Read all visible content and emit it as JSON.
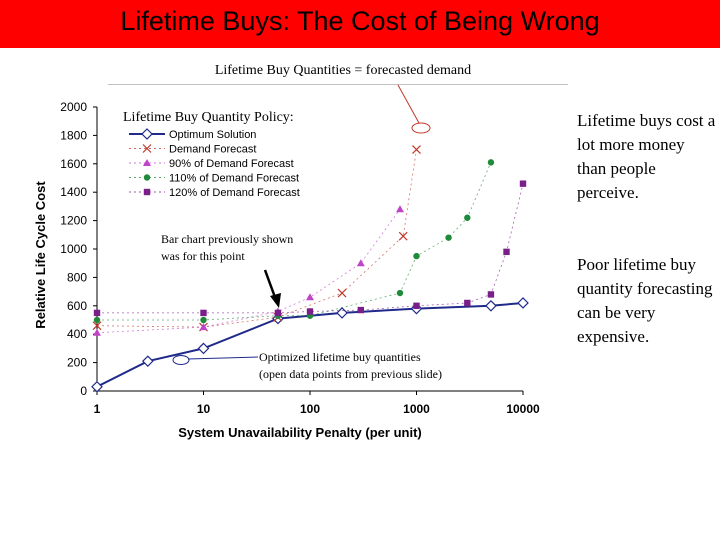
{
  "slide": {
    "title": "Lifetime Buys: The Cost of Being Wrong",
    "subtitle": "Lifetime Buy Quantities = forecasted demand",
    "bullets": [
      "Lifetime buys cost a lot more money than people perceive.",
      "Poor lifetime buy quantity forecasting can be very expensive."
    ]
  },
  "colors": {
    "title_bar": "#ff0000",
    "optimum": "#1f2a8a",
    "demand": "#c0392b",
    "pct90": "#c044c8",
    "pct110": "#1f8a3a",
    "pct120": "#7a1f8a"
  },
  "chart_data": {
    "type": "scatter",
    "xscale": "log",
    "xlabel": "System Unavailability Penalty (per unit)",
    "ylabel": "Relative Life Cycle Cost",
    "xlim": [
      1,
      10000
    ],
    "ylim": [
      0,
      2000
    ],
    "xticks": [
      "1",
      "10",
      "100",
      "1000",
      "10000"
    ],
    "yticks": [
      "0",
      "200",
      "400",
      "600",
      "800",
      "1000",
      "1200",
      "1400",
      "1600",
      "1800",
      "2000"
    ],
    "legend_title": "Lifetime Buy Quantity Policy:",
    "legend_position": "top-left",
    "series": [
      {
        "name": "Optimum Solution",
        "marker": "diamond",
        "color": "#1f2a8a",
        "x": [
          1,
          3,
          10,
          50,
          200,
          1000,
          5000,
          10000
        ],
        "y": [
          30,
          210,
          300,
          510,
          550,
          580,
          600,
          620
        ]
      },
      {
        "name": "Demand Forecast",
        "marker": "x",
        "color": "#c0392b",
        "x": [
          1,
          10,
          50,
          200,
          750,
          1000
        ],
        "y": [
          460,
          450,
          520,
          690,
          1090,
          1700
        ]
      },
      {
        "name": "90% of Demand Forecast",
        "marker": "triangle",
        "color": "#c044c8",
        "x": [
          1,
          10,
          50,
          100,
          300,
          700
        ],
        "y": [
          410,
          450,
          560,
          660,
          900,
          1280
        ]
      },
      {
        "name": "110% of Demand Forecast",
        "marker": "circle",
        "color": "#1f8a3a",
        "x": [
          1,
          10,
          50,
          100,
          700,
          1000,
          2000,
          3000,
          5000
        ],
        "y": [
          500,
          500,
          530,
          530,
          690,
          950,
          1080,
          1220,
          1610
        ]
      },
      {
        "name": "120% of Demand Forecast",
        "marker": "square",
        "color": "#7a1f8a",
        "x": [
          1,
          10,
          50,
          100,
          300,
          1000,
          3000,
          5000,
          7000,
          10000
        ],
        "y": [
          550,
          550,
          550,
          560,
          570,
          600,
          620,
          680,
          980,
          1460
        ]
      }
    ],
    "annotations": [
      {
        "text": "Bar chart previously shown was for this point"
      },
      {
        "text": "Optimized lifetime buy quantities (open data points from previous slide)"
      }
    ]
  }
}
